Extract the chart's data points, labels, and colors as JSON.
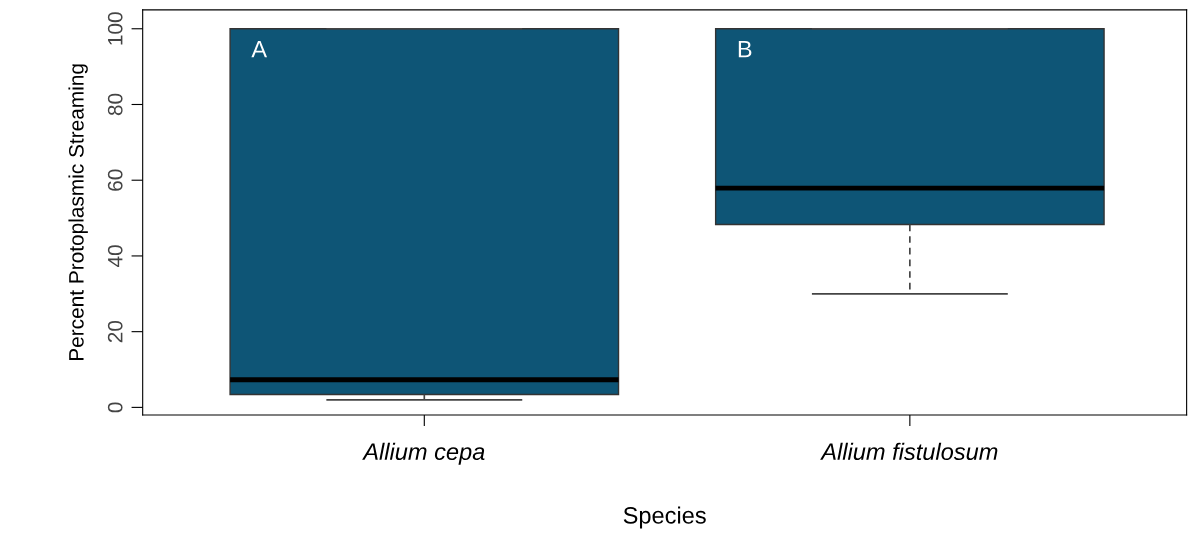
{
  "chart_data": {
    "type": "box",
    "xlabel": "Species",
    "ylabel": "Percent Protoplasmic Streaming",
    "categories": [
      "Allium cepa",
      "Allium fistulosum"
    ],
    "boxes": [
      {
        "low": 2,
        "q1": 3.4,
        "median": 7.3,
        "q3": 100,
        "high": 100
      },
      {
        "low": 30,
        "q1": 48.3,
        "median": 57.9,
        "q3": 100,
        "high": 100
      }
    ],
    "color": "#0e5576",
    "annotations": [
      "A",
      "B"
    ],
    "ylim": [
      -2,
      105
    ],
    "yticks": [
      0,
      20,
      40,
      60,
      80,
      100
    ],
    "grid": false
  }
}
